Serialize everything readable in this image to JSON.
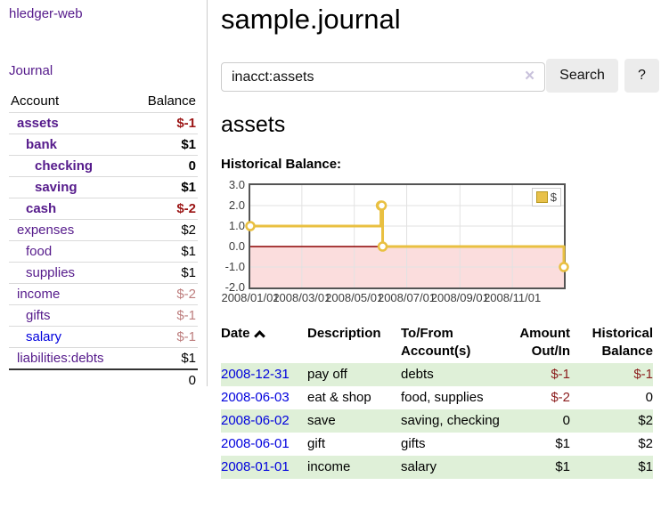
{
  "sidebar": {
    "app_title": "hledger-web",
    "journal_link": "Journal",
    "accounts_table": {
      "headers": {
        "account": "Account",
        "balance": "Balance"
      },
      "rows": [
        {
          "name": "assets",
          "balance": "$-1",
          "indent": 1,
          "bold": true,
          "balance_tone": "negative-strong"
        },
        {
          "name": "bank",
          "balance": "$1",
          "indent": 2,
          "bold": true,
          "balance_tone": "normal"
        },
        {
          "name": "checking",
          "balance": "0",
          "indent": 3,
          "bold": true,
          "balance_tone": "normal"
        },
        {
          "name": "saving",
          "balance": "$1",
          "indent": 3,
          "bold": true,
          "balance_tone": "normal"
        },
        {
          "name": "cash",
          "balance": "$-2",
          "indent": 2,
          "bold": true,
          "balance_tone": "negative-strong"
        },
        {
          "name": "expenses",
          "balance": "$2",
          "indent": 1,
          "bold": false,
          "balance_tone": "normal"
        },
        {
          "name": "food",
          "balance": "$1",
          "indent": 2,
          "bold": false,
          "balance_tone": "normal"
        },
        {
          "name": "supplies",
          "balance": "$1",
          "indent": 2,
          "bold": false,
          "balance_tone": "normal"
        },
        {
          "name": "income",
          "balance": "$-2",
          "indent": 1,
          "bold": false,
          "balance_tone": "negative-muted"
        },
        {
          "name": "gifts",
          "balance": "$-1",
          "indent": 2,
          "bold": false,
          "balance_tone": "negative-muted"
        },
        {
          "name": "salary",
          "balance": "$-1",
          "indent": 2,
          "bold": false,
          "balance_tone": "negative-muted"
        },
        {
          "name": "liabilities:debts",
          "balance": "$1",
          "indent": 1,
          "bold": false,
          "balance_tone": "normal"
        }
      ],
      "total": "0"
    }
  },
  "header": {
    "title": "sample.journal"
  },
  "search": {
    "value": "inacct:assets",
    "clear_icon": "×",
    "search_label": "Search",
    "help_label": "?"
  },
  "account_page": {
    "title": "assets",
    "chart_label": "Historical Balance:"
  },
  "chart_data": {
    "type": "line",
    "title": "Historical Balance:",
    "series": [
      {
        "name": "$",
        "color": "#e9c041",
        "step": "after",
        "points": [
          {
            "date": "2008-01-01",
            "value": 1
          },
          {
            "date": "2008-06-01",
            "value": 2
          },
          {
            "date": "2008-06-02",
            "value": 2
          },
          {
            "date": "2008-06-03",
            "value": 0
          },
          {
            "date": "2008-12-31",
            "value": -1
          }
        ]
      }
    ],
    "x_domain": [
      "2008-01-01",
      "2008-12-31"
    ],
    "ylim": [
      -2,
      3
    ],
    "y_ticks": [
      {
        "value": 3,
        "label": "3.0"
      },
      {
        "value": 2,
        "label": "2.0"
      },
      {
        "value": 1,
        "label": "1.0"
      },
      {
        "value": 0,
        "label": "0.0"
      },
      {
        "value": -1,
        "label": "-1.0"
      },
      {
        "value": -2,
        "label": "-2.0"
      }
    ],
    "x_ticks": [
      {
        "date": "2008-01-01",
        "label": "2008/01/01"
      },
      {
        "date": "2008-03-01",
        "label": "2008/03/01"
      },
      {
        "date": "2008-05-01",
        "label": "2008/05/01"
      },
      {
        "date": "2008-07-01",
        "label": "2008/07/01"
      },
      {
        "date": "2008-09-01",
        "label": "2008/09/01"
      },
      {
        "date": "2008-11-01",
        "label": "2008/11/01"
      }
    ],
    "grid": true,
    "negative_region_color": "#fbdddd",
    "zero_line_color": "#8b0000",
    "legend": {
      "label": "$",
      "position": "top-right"
    }
  },
  "register_table": {
    "headers": {
      "date": "Date",
      "description": "Description",
      "tofrom": "To/From Account(s)",
      "amount": "Amount Out/In",
      "historical": "Historical Balance"
    },
    "rows": [
      {
        "date": "2008-12-31",
        "description": "pay off",
        "tofrom": "debts",
        "amount": "$-1",
        "historical": "$-1"
      },
      {
        "date": "2008-06-03",
        "description": "eat & shop",
        "tofrom": "food, supplies",
        "amount": "$-2",
        "historical": "0"
      },
      {
        "date": "2008-06-02",
        "description": "save",
        "tofrom": "saving, checking",
        "amount": "0",
        "historical": "$2"
      },
      {
        "date": "2008-06-01",
        "description": "gift",
        "tofrom": "gifts",
        "amount": "$1",
        "historical": "$2"
      },
      {
        "date": "2008-01-01",
        "description": "income",
        "tofrom": "salary",
        "amount": "$1",
        "historical": "$1"
      }
    ]
  },
  "colors": {
    "link_purple": "#551a8b",
    "link_blue": "#0000dd",
    "negative_strong": "#9b1414",
    "negative_muted": "#bd7d7d",
    "table_negative": "#8b1d1d",
    "row_green": "#dff0d8",
    "series_yellow": "#e9c041",
    "negative_region": "#fbdddd",
    "zero_line": "#8b0000"
  }
}
